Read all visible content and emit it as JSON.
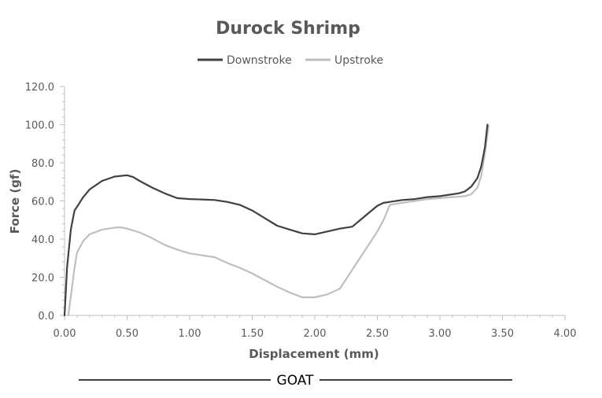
{
  "chart_data": {
    "type": "line",
    "title": "Durock Shrimp",
    "xlabel": "Displacement (mm)",
    "ylabel": "Force (gf)",
    "xlim": [
      0.0,
      4.0
    ],
    "ylim": [
      0.0,
      120.0
    ],
    "x_ticks": [
      "0.00",
      "0.50",
      "1.00",
      "1.50",
      "2.00",
      "2.50",
      "3.00",
      "3.50",
      "4.00"
    ],
    "y_ticks": [
      "0.0",
      "20.0",
      "40.0",
      "60.0",
      "80.0",
      "100.0",
      "120.0"
    ],
    "grid": false,
    "legend_position": "top",
    "series": [
      {
        "name": "Downstroke",
        "color": "#404040",
        "x": [
          0.0,
          0.02,
          0.05,
          0.08,
          0.1,
          0.15,
          0.2,
          0.3,
          0.4,
          0.5,
          0.55,
          0.6,
          0.7,
          0.8,
          0.9,
          1.0,
          1.1,
          1.2,
          1.3,
          1.4,
          1.5,
          1.6,
          1.7,
          1.8,
          1.9,
          2.0,
          2.1,
          2.2,
          2.3,
          2.4,
          2.5,
          2.55,
          2.6,
          2.7,
          2.8,
          2.9,
          3.0,
          3.1,
          3.15,
          3.2,
          3.25,
          3.3,
          3.33,
          3.36,
          3.38
        ],
        "y": [
          0.0,
          25.0,
          45.0,
          55.0,
          57.0,
          62.0,
          66.0,
          70.5,
          72.8,
          73.5,
          72.5,
          70.5,
          67.0,
          64.0,
          61.5,
          61.0,
          60.8,
          60.5,
          59.5,
          58.0,
          55.0,
          51.0,
          47.0,
          45.0,
          43.0,
          42.5,
          44.0,
          45.5,
          46.5,
          52.0,
          57.5,
          59.0,
          59.5,
          60.5,
          61.0,
          62.0,
          62.5,
          63.5,
          64.0,
          65.0,
          67.5,
          72.0,
          78.0,
          88.0,
          100.0
        ]
      },
      {
        "name": "Upstroke",
        "color": "#bfbfbf",
        "x": [
          0.03,
          0.05,
          0.08,
          0.1,
          0.15,
          0.2,
          0.3,
          0.4,
          0.45,
          0.5,
          0.6,
          0.7,
          0.8,
          0.9,
          1.0,
          1.1,
          1.2,
          1.3,
          1.4,
          1.5,
          1.6,
          1.7,
          1.8,
          1.9,
          2.0,
          2.1,
          2.2,
          2.3,
          2.4,
          2.5,
          2.55,
          2.6,
          2.7,
          2.8,
          2.9,
          3.0,
          3.1,
          3.2,
          3.25,
          3.3,
          3.33,
          3.36,
          3.39
        ],
        "y": [
          0.0,
          10.0,
          25.0,
          33.0,
          39.0,
          42.5,
          45.0,
          46.0,
          46.2,
          45.5,
          43.5,
          40.5,
          37.0,
          34.5,
          32.5,
          31.5,
          30.5,
          27.5,
          25.0,
          22.0,
          18.5,
          15.0,
          12.0,
          9.5,
          9.5,
          11.0,
          14.0,
          24.0,
          34.0,
          44.0,
          50.0,
          58.0,
          59.0,
          60.0,
          61.0,
          61.5,
          62.0,
          62.5,
          63.5,
          67.0,
          73.0,
          85.0,
          99.5
        ]
      }
    ]
  },
  "footer": {
    "label": "GOAT"
  }
}
